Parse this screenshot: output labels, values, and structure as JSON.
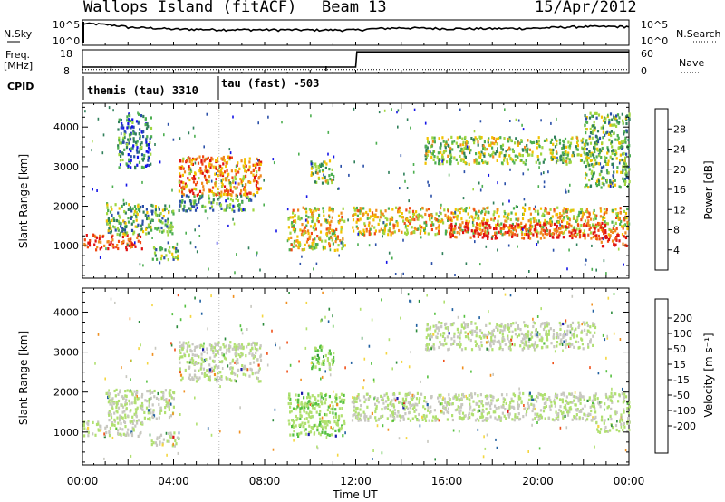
{
  "header": {
    "station": "Wallops Island (fitACF)",
    "beam": "Beam 13",
    "date": "15/Apr/2012"
  },
  "left_labels": {
    "nsky": "N.Sky",
    "freq_line1": "Freq.",
    "freq_line2": "[MHz]",
    "cpid": "CPID"
  },
  "right_labels": {
    "nsearch": "N.Search",
    "nave": "Nave"
  },
  "strip_ticks": {
    "noise_left_top": "10^5",
    "noise_left_bottom": "10^0",
    "noise_right_top": "10^5",
    "noise_right_bottom": "10^0",
    "freq_left_top": "18",
    "freq_left_bottom": "8",
    "nave_right_top": "60",
    "nave_right_bottom": "0"
  },
  "cpid_labels": {
    "mode1": "themis (tau) 3310",
    "mode2": "tau (fast) -503"
  },
  "axes": {
    "ylabel": "Slant Range [km]",
    "xlabel": "Time UT",
    "x_ticks": [
      "00:00",
      "04:00",
      "08:00",
      "12:00",
      "16:00",
      "20:00",
      "00:00"
    ],
    "y_ticks": [
      "1000",
      "2000",
      "3000",
      "4000"
    ]
  },
  "power_colorbar": {
    "label": "Power [dB]",
    "ticks": [
      "4",
      "8",
      "12",
      "16",
      "20",
      "24",
      "28"
    ],
    "colors": [
      "#1414e6",
      "#2a4fa8",
      "#2f7f5a",
      "#4caf50",
      "#9fd640",
      "#f2c200",
      "#f08a1e",
      "#f04a14",
      "#e01010"
    ]
  },
  "velocity_colorbar": {
    "label": "Velocity [m s⁻¹]",
    "ticks": [
      "200",
      "100",
      "50",
      "15",
      "-15",
      "-50",
      "-100",
      "-200"
    ],
    "colors": [
      "#1a1aa8",
      "#1f5fa0",
      "#2a8a3a",
      "#55c040",
      "#b0e070",
      "#c8c8c0",
      "#f4d640",
      "#f09020",
      "#f05018",
      "#e01010"
    ]
  },
  "chart_data": [
    {
      "type": "line",
      "title": "N.Sky / N.Search",
      "x_range": [
        "00:00",
        "24:00"
      ],
      "y_scale": "log",
      "ylim": [
        1,
        100000
      ],
      "series": [
        {
          "name": "N.Sky",
          "x_hours": [
            0,
            2,
            4,
            6,
            8,
            10,
            12,
            14,
            16,
            18,
            20,
            22,
            24
          ],
          "values": [
            30000,
            4000,
            1500,
            1200,
            1100,
            1000,
            1000,
            3000,
            2000,
            2000,
            2500,
            6000,
            6000
          ]
        }
      ]
    },
    {
      "type": "line",
      "title": "Freq. [MHz] / Nave",
      "x_range": [
        "00:00",
        "24:00"
      ],
      "ylim_freq": [
        8,
        18
      ],
      "ylim_nave": [
        0,
        60
      ],
      "series": [
        {
          "name": "Freq.",
          "x_hours": [
            0,
            0.05,
            12,
            12.05,
            24
          ],
          "values": [
            10.5,
            10.5,
            10.5,
            17.5,
            17.5
          ]
        },
        {
          "name": "Nave",
          "x_hours": [
            0,
            24
          ],
          "values": [
            8,
            8
          ]
        }
      ]
    },
    {
      "type": "heatmap",
      "title": "Power [dB]",
      "x_range_hours": [
        0,
        24
      ],
      "ylim": [
        180,
        4600
      ],
      "colorbar_range": [
        0,
        30
      ],
      "regions": [
        {
          "t0": 0,
          "t1": 2.6,
          "r0": 900,
          "r1": 1300,
          "power": 27
        },
        {
          "t0": 1.0,
          "t1": 4.0,
          "r0": 1300,
          "r1": 2100,
          "power": 12
        },
        {
          "t0": 1.5,
          "t1": 3.0,
          "r0": 3000,
          "r1": 4400,
          "power": 8
        },
        {
          "t0": 3.0,
          "t1": 4.2,
          "r0": 650,
          "r1": 1000,
          "power": 12
        },
        {
          "t0": 4.2,
          "t1": 7.8,
          "r0": 2300,
          "r1": 3300,
          "power": 22
        },
        {
          "t0": 4.2,
          "t1": 7.5,
          "r0": 1900,
          "r1": 2300,
          "power": 10
        },
        {
          "t0": 9.0,
          "t1": 11.5,
          "r0": 900,
          "r1": 2000,
          "power": 18
        },
        {
          "t0": 10.0,
          "t1": 11.0,
          "r0": 2600,
          "r1": 3200,
          "power": 14
        },
        {
          "t0": 11.8,
          "t1": 24.0,
          "r0": 1300,
          "r1": 2000,
          "power": 18
        },
        {
          "t0": 16.0,
          "t1": 23.0,
          "r0": 1200,
          "r1": 1600,
          "power": 27
        },
        {
          "t0": 15.0,
          "t1": 22.5,
          "r0": 3100,
          "r1": 3800,
          "power": 14
        },
        {
          "t0": 22.5,
          "t1": 24.0,
          "r0": 1000,
          "r1": 1300,
          "power": 27
        },
        {
          "t0": 22.0,
          "t1": 24.0,
          "r0": 2500,
          "r1": 4400,
          "power": 12
        }
      ]
    },
    {
      "type": "heatmap",
      "title": "Velocity [m s⁻¹]",
      "x_range_hours": [
        0,
        24
      ],
      "ylim": [
        180,
        4600
      ],
      "colorbar_range": [
        -200,
        200
      ],
      "regions": [
        {
          "t0": 0,
          "t1": 2.6,
          "r0": 900,
          "r1": 1300,
          "velocity": 0
        },
        {
          "t0": 1.0,
          "t1": 4.0,
          "r0": 1300,
          "r1": 2100,
          "velocity": 0
        },
        {
          "t0": 3.0,
          "t1": 4.2,
          "r0": 650,
          "r1": 1000,
          "velocity": 0
        },
        {
          "t0": 4.2,
          "t1": 7.8,
          "r0": 2300,
          "r1": 3300,
          "velocity": 0
        },
        {
          "t0": 9.0,
          "t1": 11.5,
          "r0": 900,
          "r1": 2000,
          "velocity": 30
        },
        {
          "t0": 10.0,
          "t1": 11.0,
          "r0": 2600,
          "r1": 3200,
          "velocity": 30
        },
        {
          "t0": 11.8,
          "t1": 24.0,
          "r0": 1300,
          "r1": 2000,
          "velocity": 0
        },
        {
          "t0": 15.0,
          "t1": 22.5,
          "r0": 3100,
          "r1": 3800,
          "velocity": 0
        },
        {
          "t0": 22.5,
          "t1": 24.0,
          "r0": 1000,
          "r1": 1300,
          "velocity": 0
        }
      ]
    }
  ]
}
